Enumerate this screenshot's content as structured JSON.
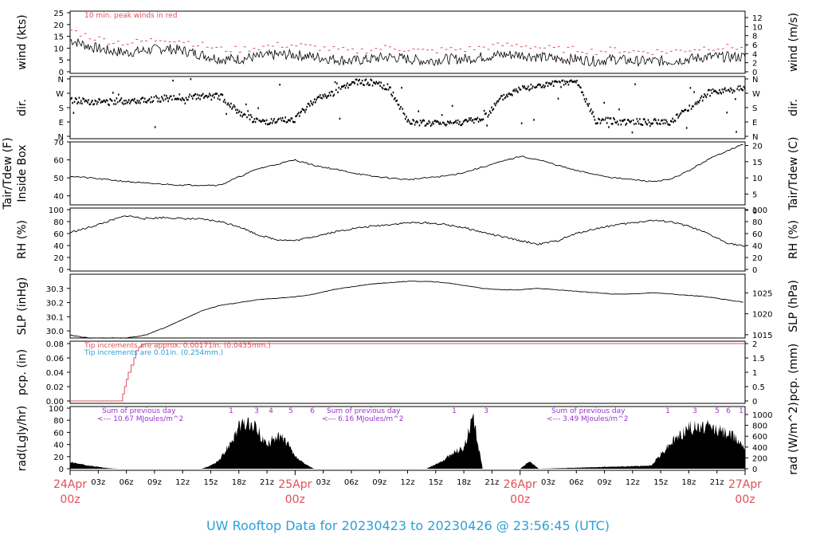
{
  "title": "UW Rooftop Data for 20230423  to  20230426 @ 23:56:45  (UTC)",
  "colors": {
    "series": "#000000",
    "peak": "#e0505a",
    "pcp_red": "#e0505a",
    "pcp_blue": "#2b9fd8",
    "annot": "#9933cc",
    "title": "#2b9fd8"
  },
  "xaxis": {
    "hours": [
      "03z",
      "06z",
      "09z",
      "12z",
      "15z",
      "18z",
      "21z",
      "03z",
      "06z",
      "09z",
      "12z",
      "15z",
      "18z",
      "21z",
      "03z",
      "06z",
      "09z",
      "12z",
      "15z",
      "18z",
      "21z"
    ],
    "days": [
      {
        "date": "24Apr",
        "hour": "00z"
      },
      {
        "date": "25Apr",
        "hour": "00z"
      },
      {
        "date": "26Apr",
        "hour": "00z"
      },
      {
        "date": "27Apr",
        "hour": "00z"
      }
    ]
  },
  "panels": {
    "wind": {
      "left_label": "wind (kts)",
      "right_label": "wind (m/s)",
      "left_ticks": [
        "0",
        "5",
        "10",
        "15",
        "20",
        "25"
      ],
      "right_ticks": [
        "0",
        "2",
        "4",
        "6",
        "8",
        "10",
        "12"
      ],
      "note": "10 min. peak winds in red"
    },
    "dir": {
      "left_label": "dir.",
      "right_label": "dir.",
      "ticks": [
        "N",
        "E",
        "S",
        "W",
        "N"
      ]
    },
    "temp": {
      "left_label": "Tair/Tdew (F)",
      "left_label2": "Inside Box",
      "right_label": "Tair/Tdew (C)",
      "left_ticks": [
        "40",
        "50",
        "60",
        "70"
      ],
      "right_ticks": [
        "0",
        "5",
        "10",
        "15",
        "20"
      ]
    },
    "rh": {
      "left_label": "RH (%)",
      "right_label": "RH (%)",
      "left_ticks": [
        "0",
        "20",
        "40",
        "60",
        "80",
        "100"
      ],
      "right_ticks": [
        "0",
        "20",
        "40",
        "60",
        "80",
        "100"
      ]
    },
    "slp": {
      "left_label": "SLP (inHg)",
      "right_label": "SLP (hPa)",
      "left_ticks": [
        "30.0",
        "30.1",
        "30.2",
        "30.3"
      ],
      "right_ticks": [
        "1015",
        "1020",
        "1025"
      ]
    },
    "pcp": {
      "left_label": "pcp. (in)",
      "right_label": "pcp. (mm)",
      "left_ticks": [
        "0.00",
        "0.02",
        "0.04",
        "0.06",
        "0.08"
      ],
      "right_ticks": [
        "0",
        "0.5",
        "1",
        "1.5",
        "2"
      ],
      "note_red": "Tip increments are approx. 0.00171in. (0.0435mm.)",
      "note_blue": "Tip increments are 0.01in. (0.254mm.)"
    },
    "rad": {
      "left_label": "rad(Lgly/hr)",
      "right_label": "rad (W/m^2)",
      "left_ticks": [
        "0",
        "20",
        "40",
        "60",
        "80",
        "100"
      ],
      "right_ticks": [
        "0",
        "200",
        "400",
        "600",
        "800",
        "1000"
      ],
      "sums": [
        {
          "line1": "Sum of previous day",
          "line2": "<--- 10.67 MJoules/m^2"
        },
        {
          "line1": "Sum of previous day",
          "line2": "<--- 6.16 MJoules/m^2"
        },
        {
          "line1": "Sum of previous day",
          "line2": "<--- 3.49 MJoules/m^2"
        }
      ],
      "markers": [
        "1",
        "3",
        "4",
        "5",
        "6",
        "1",
        "3",
        "1",
        "3",
        "5",
        "6",
        "1"
      ]
    }
  },
  "chart_data": {
    "type": "line",
    "x_range_hours": [
      0,
      72
    ],
    "series": [
      {
        "name": "wind",
        "ylim": [
          0,
          25
        ],
        "x": [
          0,
          2,
          4,
          6,
          8,
          10,
          12,
          14,
          16,
          18,
          20,
          22,
          24,
          26,
          28,
          30,
          32,
          34,
          36,
          38,
          40,
          42,
          44,
          46,
          48,
          50,
          52,
          54,
          56,
          58,
          60,
          62,
          64,
          66,
          68,
          70,
          72
        ],
        "values": [
          15,
          12,
          10,
          9,
          10,
          11,
          10,
          8,
          6,
          6,
          7,
          8,
          8,
          7,
          6,
          5,
          6,
          7,
          6,
          5,
          6,
          6,
          7,
          8,
          8,
          7,
          6,
          6,
          5,
          6,
          5,
          5,
          5,
          6,
          7,
          7,
          7
        ]
      },
      {
        "name": "dir",
        "ylim": [
          0,
          360
        ],
        "x": [
          0,
          4,
          8,
          12,
          16,
          18,
          20,
          22,
          24,
          26,
          28,
          30,
          32,
          34,
          36,
          38,
          40,
          42,
          44,
          46,
          48,
          50,
          52,
          54,
          56,
          60,
          64,
          68,
          70,
          72
        ],
        "values": [
          225,
          215,
          230,
          245,
          250,
          150,
          90,
          90,
          110,
          230,
          270,
          335,
          340,
          300,
          90,
          80,
          85,
          90,
          110,
          240,
          300,
          315,
          330,
          340,
          100,
          90,
          90,
          270,
          290,
          300
        ]
      },
      {
        "name": "Tair",
        "ylim": [
          35,
          70
        ],
        "x": [
          0,
          4,
          8,
          12,
          16,
          20,
          24,
          26,
          28,
          30,
          32,
          34,
          36,
          38,
          40,
          42,
          44,
          46,
          48,
          50,
          52,
          54,
          56,
          58,
          60,
          62,
          64,
          66,
          68,
          70,
          72
        ],
        "values": [
          51,
          49,
          47,
          46,
          46,
          55,
          60,
          57,
          55,
          53,
          51,
          50,
          49,
          50,
          51,
          53,
          56,
          59,
          62,
          60,
          57,
          54,
          52,
          50,
          49,
          48,
          49,
          54,
          60,
          65,
          69
        ]
      },
      {
        "name": "RH",
        "ylim": [
          0,
          100
        ],
        "x": [
          0,
          2,
          4,
          6,
          8,
          10,
          12,
          14,
          16,
          18,
          20,
          22,
          24,
          26,
          28,
          30,
          32,
          34,
          36,
          38,
          40,
          42,
          44,
          46,
          48,
          50,
          52,
          54,
          56,
          58,
          60,
          62,
          64,
          66,
          68,
          70,
          72
        ],
        "values": [
          62,
          70,
          80,
          90,
          85,
          87,
          85,
          84,
          80,
          72,
          58,
          50,
          48,
          55,
          62,
          68,
          72,
          75,
          78,
          78,
          75,
          70,
          62,
          55,
          48,
          42,
          48,
          60,
          68,
          74,
          78,
          82,
          80,
          72,
          60,
          45,
          38
        ]
      },
      {
        "name": "SLP",
        "ylim": [
          29.95,
          30.4
        ],
        "x": [
          0,
          2,
          4,
          6,
          8,
          10,
          12,
          14,
          16,
          18,
          20,
          22,
          24,
          26,
          28,
          30,
          32,
          34,
          36,
          38,
          40,
          42,
          44,
          46,
          48,
          50,
          52,
          54,
          56,
          58,
          60,
          62,
          64,
          66,
          68,
          70,
          72
        ],
        "values": [
          29.97,
          29.95,
          29.95,
          29.95,
          29.97,
          30.02,
          30.08,
          30.14,
          30.18,
          30.2,
          30.22,
          30.23,
          30.24,
          30.26,
          30.29,
          30.31,
          30.33,
          30.34,
          30.35,
          30.35,
          30.34,
          30.32,
          30.3,
          30.29,
          30.29,
          30.3,
          30.29,
          30.28,
          30.27,
          30.26,
          30.26,
          30.27,
          30.26,
          30.25,
          30.24,
          30.22,
          30.2
        ]
      },
      {
        "name": "pcp",
        "ylim": [
          0,
          0.08
        ],
        "x": [
          0,
          5.5,
          5.6,
          5.8,
          6.0,
          6.2,
          6.5,
          6.8,
          7.0,
          7.3,
          7.6,
          8.0,
          72
        ],
        "values": [
          0,
          0,
          0.01,
          0.02,
          0.03,
          0.04,
          0.05,
          0.06,
          0.07,
          0.075,
          0.079,
          0.08,
          0.08
        ]
      },
      {
        "name": "rad",
        "ylim": [
          0,
          100
        ],
        "x": [
          0,
          1,
          2,
          3,
          4,
          5,
          14,
          15,
          16,
          17,
          18,
          19,
          20,
          21,
          22,
          23,
          24,
          25,
          26,
          27,
          38,
          40,
          41,
          42,
          43,
          44,
          48,
          49,
          50,
          62,
          63,
          64,
          65,
          66,
          67,
          68,
          69,
          70,
          71,
          72
        ],
        "values": [
          10,
          8,
          5,
          3,
          1,
          0,
          0,
          5,
          15,
          45,
          75,
          80,
          70,
          40,
          60,
          50,
          20,
          8,
          0,
          0,
          0,
          15,
          30,
          38,
          90,
          0,
          0,
          12,
          0,
          5,
          25,
          45,
          60,
          75,
          72,
          75,
          70,
          65,
          55,
          40
        ]
      }
    ]
  }
}
